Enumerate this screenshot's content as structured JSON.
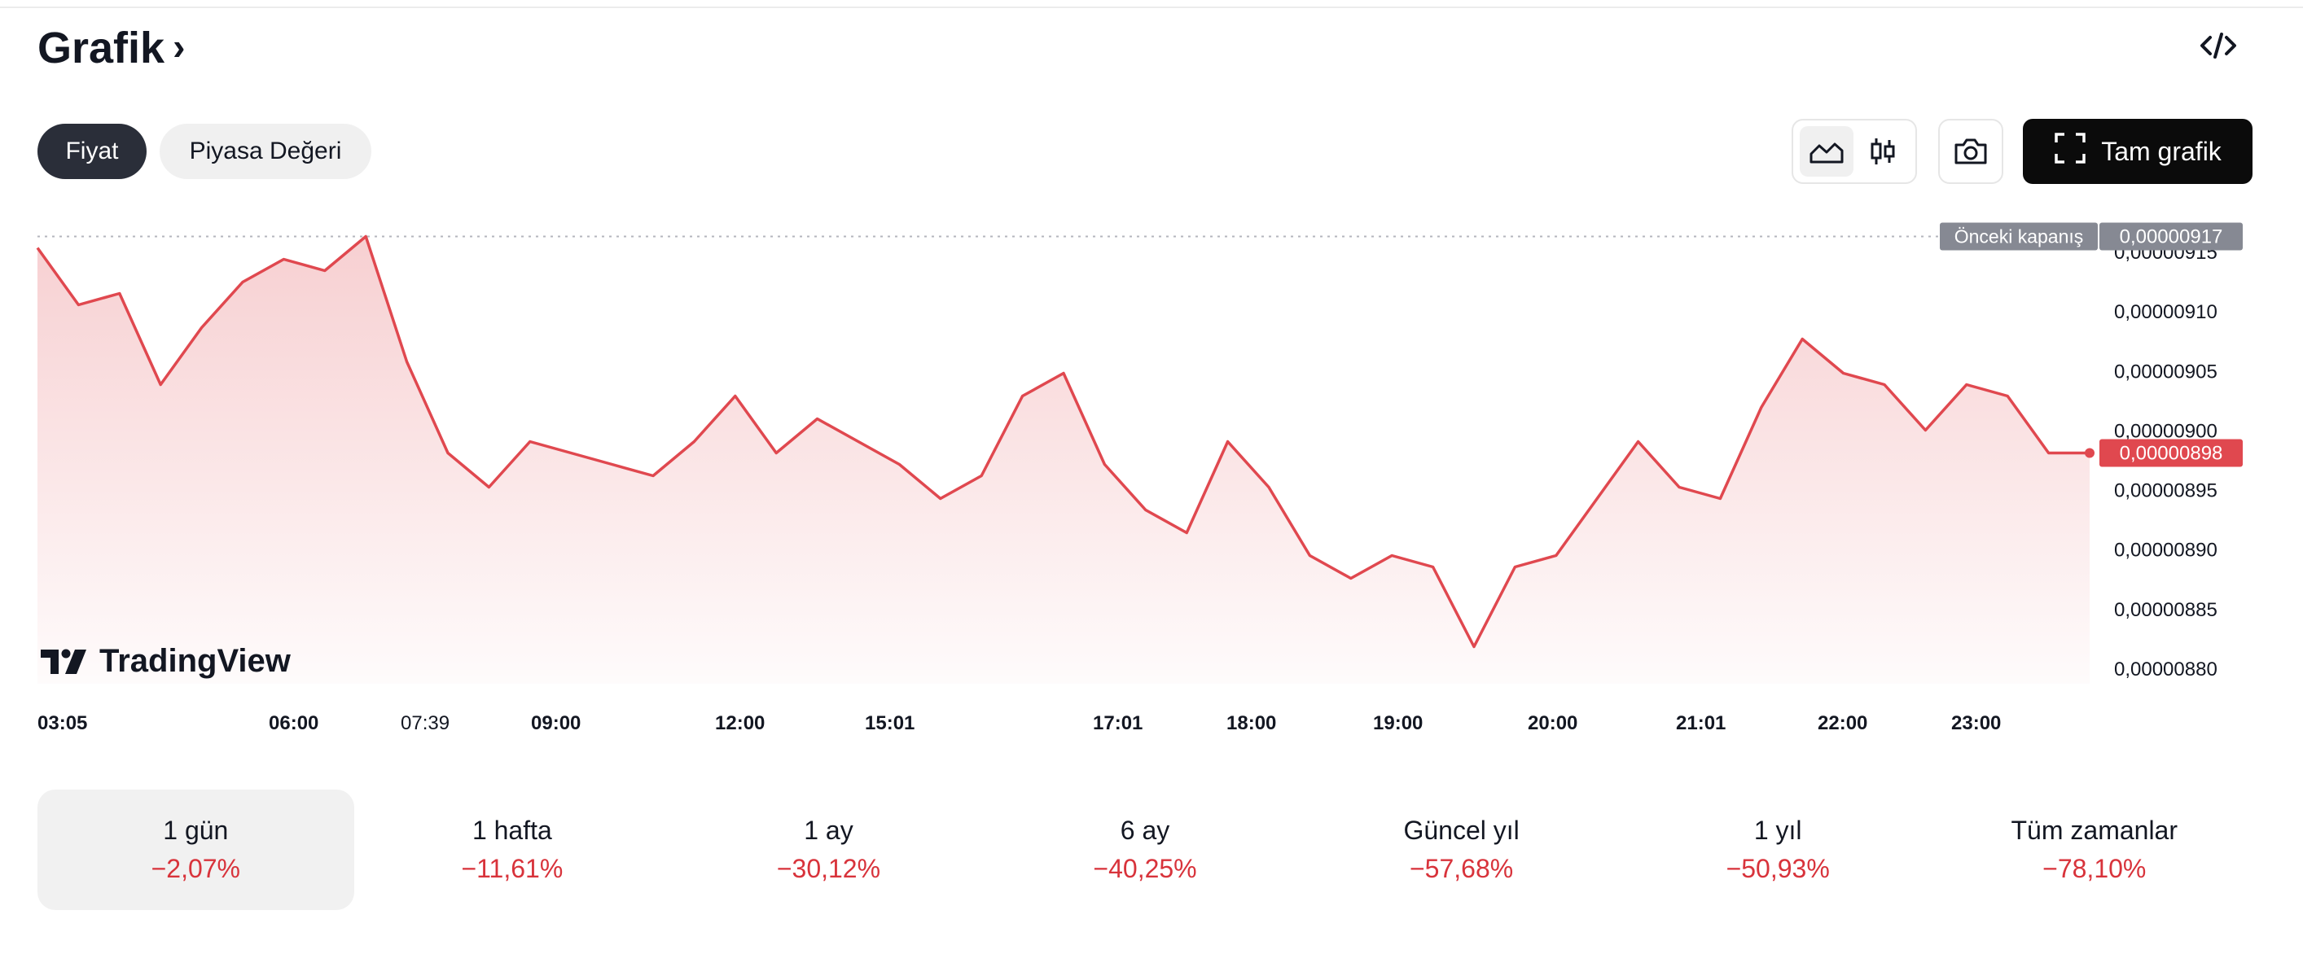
{
  "header": {
    "title": "Grafik",
    "title_chevron": "›",
    "embed_icon": "code-icon"
  },
  "toggle": {
    "price_label": "Fiyat",
    "market_cap_label": "Piyasa Değeri",
    "selected": "Fiyat"
  },
  "toolbar": {
    "area_icon": "area-chart-icon",
    "candle_icon": "candlestick-icon",
    "camera_icon": "camera-icon",
    "full_chart_label": "Tam grafik",
    "full_chart_icon": "fullscreen-icon"
  },
  "watermark": {
    "brand": "TradingView"
  },
  "colors": {
    "line": "#e0484f",
    "accent_red": "#d8333b",
    "prev_close_tag": "#868993",
    "dark_button": "#0b0b0b"
  },
  "chart_data": {
    "type": "area",
    "x_tick_labels": [
      "03:05",
      "06:00",
      "07:39",
      "09:00",
      "12:00",
      "15:01",
      "17:01",
      "18:00",
      "19:00",
      "20:00",
      "21:01",
      "22:00",
      "23:00"
    ],
    "y_tick_labels": [
      "0,00000915",
      "0,00000910",
      "0,00000905",
      "0,00000900",
      "0,00000895",
      "0,00000890",
      "0,00000885",
      "0,00000880"
    ],
    "ylim": [
      8.7775e-06,
      9.1775e-06
    ],
    "reference_lines": [
      {
        "label": "Önceki kapanış",
        "value_label": "0,00000917",
        "value": 9.17e-06
      }
    ],
    "last_value_label": "0,00000898",
    "last_value": 8.98e-06,
    "series": [
      {
        "x": [
          0,
          2,
          4,
          6,
          8,
          10,
          12,
          14,
          16,
          18,
          20,
          22,
          24,
          26,
          28,
          30,
          32,
          34,
          36,
          38,
          40,
          42,
          44,
          46,
          48,
          50,
          52,
          54,
          56,
          58,
          60,
          62,
          64,
          66,
          68,
          70,
          72,
          74,
          76,
          78,
          80,
          82,
          84,
          86,
          88,
          90,
          92,
          94,
          96,
          98,
          100
        ],
        "values": [
          9.16e-06,
          9.11e-06,
          9.12e-06,
          9.04e-06,
          9.09e-06,
          9.13e-06,
          9.15e-06,
          9.14e-06,
          9.17e-06,
          9.06e-06,
          8.98e-06,
          8.95e-06,
          8.99e-06,
          8.98e-06,
          8.97e-06,
          8.96e-06,
          8.99e-06,
          9.03e-06,
          8.98e-06,
          9.01e-06,
          8.99e-06,
          8.97e-06,
          8.94e-06,
          8.96e-06,
          9.03e-06,
          9.05e-06,
          8.97e-06,
          8.93e-06,
          8.91e-06,
          8.99e-06,
          8.95e-06,
          8.89e-06,
          8.87e-06,
          8.89e-06,
          8.88e-06,
          8.81e-06,
          8.88e-06,
          8.89e-06,
          8.94e-06,
          8.99e-06,
          8.95e-06,
          8.94e-06,
          9.02e-06,
          9.08e-06,
          9.05e-06,
          9.04e-06,
          9e-06,
          9.04e-06,
          9.03e-06,
          8.98e-06,
          8.98e-06
        ]
      }
    ]
  },
  "periods": [
    {
      "label": "1 gün",
      "change": "−2,07%",
      "active": true
    },
    {
      "label": "1 hafta",
      "change": "−11,61%",
      "active": false
    },
    {
      "label": "1 ay",
      "change": "−30,12%",
      "active": false
    },
    {
      "label": "6 ay",
      "change": "−40,25%",
      "active": false
    },
    {
      "label": "Güncel yıl",
      "change": "−57,68%",
      "active": false
    },
    {
      "label": "1 yıl",
      "change": "−50,93%",
      "active": false
    },
    {
      "label": "Tüm zamanlar",
      "change": "−78,10%",
      "active": false
    }
  ]
}
